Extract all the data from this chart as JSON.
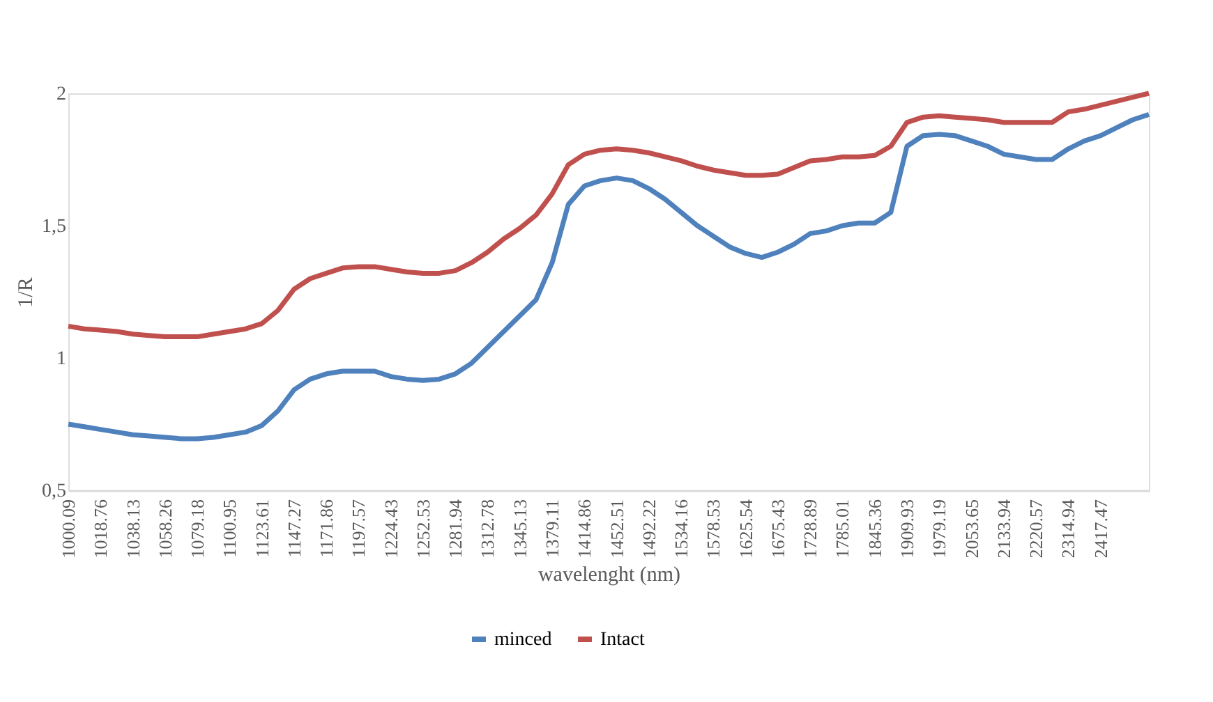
{
  "chart_data": {
    "type": "line",
    "xlabel": "wavelenght (nm)",
    "ylabel": "1/R",
    "categories": [
      "1000.09",
      null,
      "1018.76",
      null,
      "1038.13",
      null,
      "1058.26",
      null,
      "1079.18",
      null,
      "1100.95",
      null,
      "1123.61",
      null,
      "1147.27",
      null,
      "1171.86",
      null,
      "1197.57",
      null,
      "1224.43",
      null,
      "1252.53",
      null,
      "1281.94",
      null,
      "1312.78",
      null,
      "1345.13",
      null,
      "1379.11",
      null,
      "1414.86",
      null,
      "1452.51",
      null,
      "1492.22",
      null,
      "1534.16",
      null,
      "1578.53",
      null,
      "1625.54",
      null,
      "1675.43",
      null,
      "1728.89",
      null,
      "1785.01",
      null,
      "1845.36",
      null,
      "1909.93",
      null,
      "1979.19",
      null,
      "2053.65",
      null,
      "2133.94",
      null,
      "2220.57",
      null,
      "2314.94",
      null,
      "2417.47",
      null,
      null,
      null
    ],
    "series": [
      {
        "name": "minced",
        "color": "#4f81bd",
        "values": [
          0.75,
          0.74,
          0.73,
          0.72,
          0.71,
          0.705,
          0.7,
          0.695,
          0.695,
          0.7,
          0.71,
          0.72,
          0.745,
          0.8,
          0.88,
          0.92,
          0.94,
          0.95,
          0.95,
          0.95,
          0.93,
          0.92,
          0.915,
          0.92,
          0.94,
          0.98,
          1.04,
          1.1,
          1.16,
          1.22,
          1.36,
          1.58,
          1.65,
          1.67,
          1.68,
          1.67,
          1.64,
          1.6,
          1.55,
          1.5,
          1.46,
          1.42,
          1.395,
          1.38,
          1.4,
          1.43,
          1.47,
          1.48,
          1.5,
          1.51,
          1.51,
          1.55,
          1.8,
          1.84,
          1.845,
          1.84,
          1.82,
          1.8,
          1.77,
          1.76,
          1.75,
          1.75,
          1.79,
          1.82,
          1.84,
          1.87,
          1.9,
          1.92
        ]
      },
      {
        "name": "Intact",
        "color": "#c0504d",
        "values": [
          1.12,
          1.11,
          1.105,
          1.1,
          1.09,
          1.085,
          1.08,
          1.08,
          1.08,
          1.09,
          1.1,
          1.11,
          1.13,
          1.18,
          1.26,
          1.3,
          1.32,
          1.34,
          1.345,
          1.345,
          1.335,
          1.325,
          1.32,
          1.32,
          1.33,
          1.36,
          1.4,
          1.45,
          1.49,
          1.54,
          1.62,
          1.73,
          1.77,
          1.785,
          1.79,
          1.785,
          1.775,
          1.76,
          1.745,
          1.725,
          1.71,
          1.7,
          1.69,
          1.69,
          1.695,
          1.72,
          1.745,
          1.75,
          1.76,
          1.76,
          1.765,
          1.8,
          1.89,
          1.91,
          1.915,
          1.91,
          1.905,
          1.9,
          1.89,
          1.89,
          1.89,
          1.89,
          1.93,
          1.94,
          1.955,
          1.97,
          1.985,
          2.0
        ]
      }
    ],
    "ylim": [
      0.5,
      2
    ],
    "yticks": [
      {
        "value": 0.5,
        "label": "0,5"
      },
      1,
      {
        "value": 1.5,
        "label": "1,5"
      },
      2
    ],
    "grid": false,
    "legend": "bottom",
    "marker": "none",
    "line_style": "solid"
  }
}
